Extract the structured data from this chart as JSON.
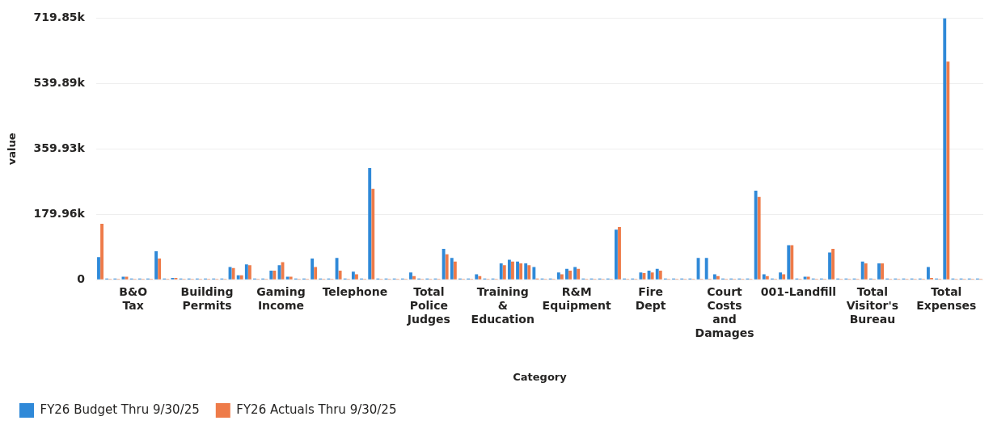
{
  "chart_data": {
    "type": "bar",
    "xlabel": "Category",
    "ylabel": "value",
    "categories": [
      null,
      null,
      null,
      null,
      "B&O Tax",
      null,
      null,
      null,
      null,
      null,
      null,
      null,
      null,
      "Building Permits",
      null,
      null,
      null,
      null,
      null,
      null,
      null,
      null,
      "Gaming Income",
      null,
      null,
      null,
      null,
      null,
      null,
      null,
      null,
      "Telephone",
      null,
      null,
      null,
      null,
      null,
      null,
      null,
      null,
      "Total Police Judges",
      null,
      null,
      null,
      null,
      null,
      null,
      null,
      null,
      "Training & Education",
      null,
      null,
      null,
      null,
      null,
      null,
      null,
      null,
      "R&M Equipment",
      null,
      null,
      null,
      null,
      null,
      null,
      null,
      null,
      "Fire Dept",
      null,
      null,
      null,
      null,
      null,
      null,
      null,
      null,
      "Court Costs and Damages",
      null,
      null,
      null,
      null,
      null,
      null,
      null,
      null,
      "001-Landfill",
      null,
      null,
      null,
      null,
      null,
      null,
      null,
      null,
      "Total Visitor's Bureau",
      null,
      null,
      null,
      null,
      null,
      null,
      null,
      null,
      "Total Expenses",
      null,
      null,
      null,
      null
    ],
    "series": [
      {
        "name": "FY26 Budget Thru 9/30/25",
        "color": "#2f89d8",
        "values": [
          62000,
          3000,
          3000,
          8000,
          3000,
          3000,
          3000,
          78000,
          3000,
          5000,
          3000,
          3000,
          3000,
          3000,
          3000,
          3000,
          35000,
          12000,
          42000,
          3000,
          3000,
          25000,
          40000,
          8000,
          3000,
          3000,
          58000,
          3000,
          3000,
          60000,
          3000,
          22000,
          3000,
          307000,
          3000,
          3000,
          3000,
          3000,
          20000,
          3000,
          3000,
          3000,
          85000,
          60000,
          3000,
          3000,
          15000,
          3000,
          3000,
          45000,
          55000,
          50000,
          45000,
          35000,
          3000,
          3000,
          20000,
          30000,
          35000,
          3000,
          3000,
          3000,
          3000,
          138000,
          3000,
          3000,
          20000,
          25000,
          30000,
          3000,
          3000,
          3000,
          3000,
          60000,
          60000,
          15000,
          3000,
          3000,
          3000,
          3000,
          245000,
          15000,
          3000,
          20000,
          95000,
          3000,
          8000,
          3000,
          3000,
          75000,
          3000,
          3000,
          3000,
          50000,
          3000,
          45000,
          3000,
          3000,
          3000,
          3000,
          3000,
          35000,
          3000,
          719850,
          3000,
          3000,
          3000,
          3000
        ]
      },
      {
        "name": "FY26 Actuals Thru 9/30/25",
        "color": "#ee7b49",
        "values": [
          154000,
          2000,
          2000,
          8000,
          2000,
          2000,
          2000,
          58000,
          2000,
          5000,
          2000,
          2000,
          2000,
          2000,
          2000,
          2000,
          32000,
          12000,
          40000,
          2000,
          2000,
          25000,
          48000,
          8000,
          2000,
          2000,
          35000,
          2000,
          2000,
          25000,
          2000,
          15000,
          2000,
          250000,
          2000,
          2000,
          2000,
          2000,
          10000,
          2000,
          2000,
          2000,
          70000,
          50000,
          2000,
          2000,
          10000,
          2000,
          2000,
          40000,
          50000,
          45000,
          40000,
          3000,
          2000,
          2000,
          15000,
          25000,
          30000,
          2000,
          2000,
          2000,
          2000,
          145000,
          2000,
          2000,
          18000,
          20000,
          25000,
          2000,
          2000,
          2000,
          2000,
          2000,
          2000,
          10000,
          2000,
          2000,
          2000,
          2000,
          228000,
          10000,
          2000,
          15000,
          95000,
          2000,
          8000,
          2000,
          2000,
          85000,
          2000,
          2000,
          2000,
          45000,
          2000,
          45000,
          2000,
          2000,
          2000,
          2000,
          2000,
          5000,
          2000,
          600000,
          2000,
          2000,
          2000,
          2000
        ]
      }
    ],
    "ylim": [
      0,
      719850
    ],
    "yticks": [
      0,
      {
        "value": 179960,
        "label": "179.96k"
      },
      {
        "value": 359930,
        "label": "359.93k"
      },
      {
        "value": 539890,
        "label": "539.89k"
      },
      {
        "value": 719850,
        "label": "719.85k"
      }
    ],
    "grid": "y",
    "legend": "bottom left"
  }
}
